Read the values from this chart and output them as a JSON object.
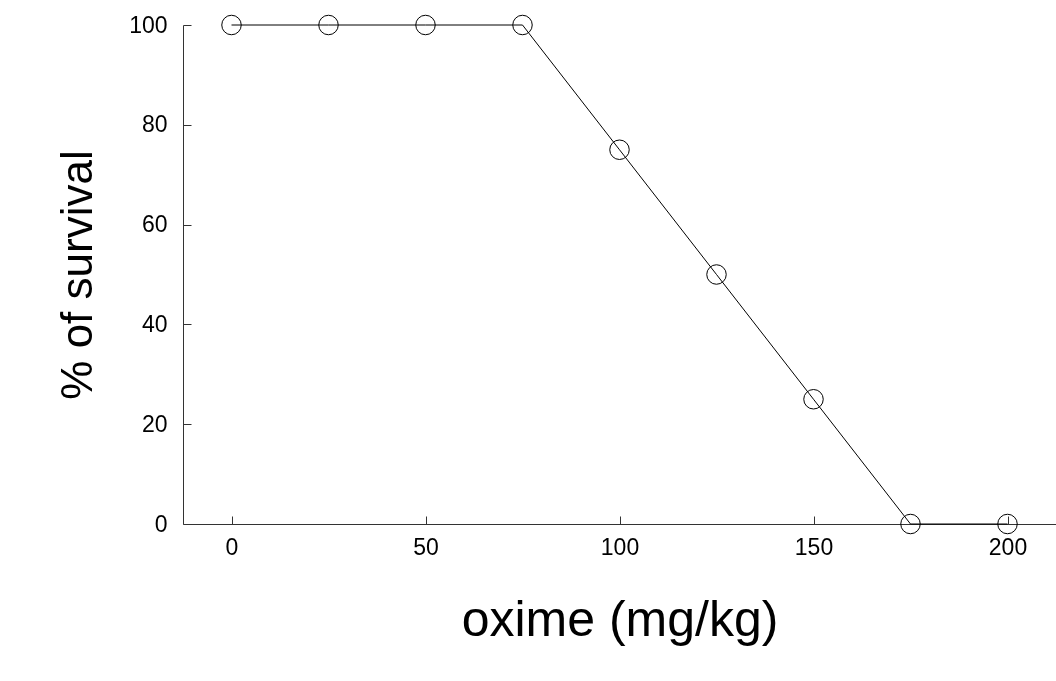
{
  "chart_data": {
    "type": "line",
    "xlabel": "oxime (mg/kg)",
    "ylabel": "% of survival",
    "x": [
      0,
      25,
      50,
      75,
      100,
      125,
      150,
      175,
      200
    ],
    "series": [
      {
        "color": "#000000",
        "values": [
          100,
          100,
          100,
          100,
          75,
          50,
          25,
          0,
          0
        ]
      }
    ],
    "xlim": [
      -12.5,
      212.5
    ],
    "xticks": [
      0,
      50,
      100,
      150,
      200
    ],
    "ylim": [
      0,
      100
    ],
    "yticks": [
      0,
      20,
      40,
      60,
      80,
      100
    ],
    "marker": "circle",
    "line_style": "solid",
    "grid": false
  }
}
